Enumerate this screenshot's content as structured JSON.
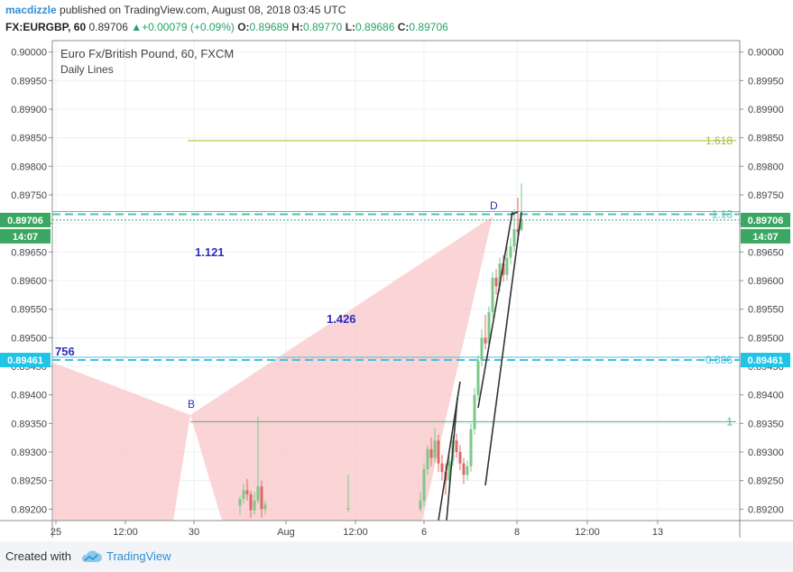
{
  "header": {
    "author": "macdizzle",
    "published": "published on TradingView.com, August 08, 2018 03:45 UTC",
    "symbol": "FX:EURGBP, 60",
    "last": "0.89706",
    "change": "+0.00079 (+0.09%)",
    "o_label": "O:",
    "o_value": "0.89689",
    "h_label": "H:",
    "h_value": "0.89770",
    "l_label": "L:",
    "l_value": "0.89686",
    "c_label": "C:",
    "c_value": "0.89706"
  },
  "footer": {
    "created_with": "Created with",
    "brand": "TradingView"
  },
  "chart_data": {
    "type": "candlestick",
    "title": "Euro Fx/British Pound, 60, FXCM",
    "subtitle": "Daily Lines",
    "ylim": [
      0.8918,
      0.9002
    ],
    "yticks": [
      "0.90000",
      "0.89950",
      "0.89900",
      "0.89850",
      "0.89800",
      "0.89750",
      "0.89700",
      "0.89650",
      "0.89600",
      "0.89550",
      "0.89500",
      "0.89450",
      "0.89400",
      "0.89350",
      "0.89300",
      "0.89250",
      "0.89200"
    ],
    "xticks": [
      "25",
      "12:00",
      "30",
      "Aug",
      "12:00",
      "6",
      "8",
      "12:00",
      "13"
    ],
    "price_label": "0.89706",
    "countdown": "14:07",
    "level_label": "0.89461",
    "hlines": [
      {
        "label": "1.618",
        "value": 0.89845,
        "color": "#a5c034",
        "dashed": false
      },
      {
        "label": "1.13",
        "value": 0.89716,
        "color": "#4fc1b5",
        "dashed": true
      },
      {
        "label": "0.886",
        "value": 0.89461,
        "color": "#3cc3e0",
        "dashed": true
      },
      {
        "label": "1",
        "value": 0.89353,
        "color": "#4caf8a",
        "dashed": false
      }
    ],
    "points": [
      {
        "label": "B",
        "value": 0.89372
      },
      {
        "label": "D",
        "value": 0.8972
      }
    ],
    "ratios": [
      "1.121",
      "1.426",
      "756"
    ],
    "candles": [
      {
        "x": 0,
        "o": 0.89206,
        "c": 0.89218,
        "h": 0.89224,
        "l": 0.8919
      },
      {
        "x": 1,
        "o": 0.89218,
        "c": 0.89233,
        "h": 0.89244,
        "l": 0.8921
      },
      {
        "x": 2,
        "o": 0.89233,
        "c": 0.89226,
        "h": 0.89253,
        "l": 0.89215
      },
      {
        "x": 3,
        "o": 0.89226,
        "c": 0.89198,
        "h": 0.89232,
        "l": 0.89185
      },
      {
        "x": 4,
        "o": 0.89198,
        "c": 0.89215,
        "h": 0.8923,
        "l": 0.8919
      },
      {
        "x": 5,
        "o": 0.89215,
        "c": 0.8924,
        "h": 0.89362,
        "l": 0.8921
      },
      {
        "x": 6,
        "o": 0.8924,
        "c": 0.892,
        "h": 0.8925,
        "l": 0.89185
      },
      {
        "x": 7,
        "o": 0.892,
        "c": 0.89208,
        "h": 0.89215,
        "l": 0.8919
      },
      {
        "x": 30,
        "o": 0.892,
        "c": 0.89202,
        "h": 0.8926,
        "l": 0.89195
      },
      {
        "x": 50,
        "o": 0.892,
        "c": 0.89215,
        "h": 0.8923,
        "l": 0.89195
      },
      {
        "x": 51,
        "o": 0.89215,
        "c": 0.8927,
        "h": 0.8928,
        "l": 0.89205
      },
      {
        "x": 52,
        "o": 0.8927,
        "c": 0.89305,
        "h": 0.89312,
        "l": 0.8926
      },
      {
        "x": 53,
        "o": 0.89305,
        "c": 0.8929,
        "h": 0.89325,
        "l": 0.89275
      },
      {
        "x": 54,
        "o": 0.8929,
        "c": 0.8932,
        "h": 0.89342,
        "l": 0.89282
      },
      {
        "x": 55,
        "o": 0.8932,
        "c": 0.8928,
        "h": 0.8933,
        "l": 0.89265
      },
      {
        "x": 56,
        "o": 0.8928,
        "c": 0.89265,
        "h": 0.89295,
        "l": 0.8925
      },
      {
        "x": 57,
        "o": 0.89265,
        "c": 0.8925,
        "h": 0.8928,
        "l": 0.89225
      },
      {
        "x": 58,
        "o": 0.8925,
        "c": 0.89285,
        "h": 0.89295,
        "l": 0.8924
      },
      {
        "x": 59,
        "o": 0.89285,
        "c": 0.8932,
        "h": 0.89328,
        "l": 0.89275
      },
      {
        "x": 60,
        "o": 0.8932,
        "c": 0.893,
        "h": 0.89332,
        "l": 0.8929
      },
      {
        "x": 61,
        "o": 0.893,
        "c": 0.8928,
        "h": 0.89312,
        "l": 0.89268
      },
      {
        "x": 62,
        "o": 0.8928,
        "c": 0.8926,
        "h": 0.8929,
        "l": 0.89244
      },
      {
        "x": 63,
        "o": 0.8926,
        "c": 0.89275,
        "h": 0.89285,
        "l": 0.8925
      },
      {
        "x": 64,
        "o": 0.89275,
        "c": 0.8934,
        "h": 0.8935,
        "l": 0.89265
      },
      {
        "x": 65,
        "o": 0.8934,
        "c": 0.894,
        "h": 0.89412,
        "l": 0.8933
      },
      {
        "x": 66,
        "o": 0.894,
        "c": 0.8946,
        "h": 0.8947,
        "l": 0.8939
      },
      {
        "x": 67,
        "o": 0.8946,
        "c": 0.895,
        "h": 0.89515,
        "l": 0.8945
      },
      {
        "x": 68,
        "o": 0.895,
        "c": 0.8949,
        "h": 0.8954,
        "l": 0.8948
      },
      {
        "x": 69,
        "o": 0.8949,
        "c": 0.89545,
        "h": 0.89555,
        "l": 0.8948
      },
      {
        "x": 70,
        "o": 0.89545,
        "c": 0.89605,
        "h": 0.89615,
        "l": 0.89535
      },
      {
        "x": 71,
        "o": 0.89605,
        "c": 0.8959,
        "h": 0.8962,
        "l": 0.89575
      },
      {
        "x": 72,
        "o": 0.8959,
        "c": 0.8963,
        "h": 0.8964,
        "l": 0.8958
      },
      {
        "x": 73,
        "o": 0.8963,
        "c": 0.8961,
        "h": 0.89645,
        "l": 0.89598
      },
      {
        "x": 74,
        "o": 0.8961,
        "c": 0.8964,
        "h": 0.8966,
        "l": 0.896
      },
      {
        "x": 75,
        "o": 0.8964,
        "c": 0.8966,
        "h": 0.89675,
        "l": 0.89628
      },
      {
        "x": 76,
        "o": 0.8966,
        "c": 0.8969,
        "h": 0.89725,
        "l": 0.8965
      },
      {
        "x": 77,
        "o": 0.8969,
        "c": 0.89685,
        "h": 0.89745,
        "l": 0.8967
      },
      {
        "x": 78,
        "o": 0.89689,
        "c": 0.89706,
        "h": 0.8977,
        "l": 0.89686
      }
    ]
  }
}
